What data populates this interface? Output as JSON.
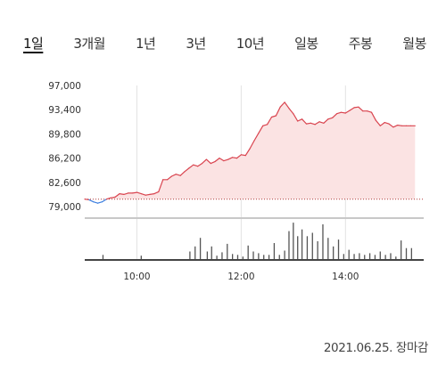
{
  "tabs": [
    {
      "label": "1일",
      "active": true
    },
    {
      "label": "3개월",
      "active": false
    },
    {
      "label": "1년",
      "active": false
    },
    {
      "label": "3년",
      "active": false
    },
    {
      "label": "10년",
      "active": false
    },
    {
      "label": "일봉",
      "active": false
    },
    {
      "label": "주봉",
      "active": false
    },
    {
      "label": "월봉",
      "active": false
    }
  ],
  "footer": {
    "date_label": "2021.06.25. 장마감"
  },
  "colors": {
    "up_line": "#d9444f",
    "up_fill": "#fbe3e3",
    "down_line": "#3d7fe0",
    "prev_close_dotted": "#b03a3a",
    "volume_bar": "#555555",
    "axis": "#444444",
    "grid": "#e3e3e3"
  },
  "chart_data": {
    "type": "area",
    "title": "",
    "xlabel": "",
    "ylabel": "",
    "y_ticks": [
      "97,000",
      "93,400",
      "89,800",
      "86,200",
      "82,600",
      "79,000"
    ],
    "y_tick_values": [
      97000,
      93400,
      89800,
      86200,
      82600,
      79000
    ],
    "ylim": [
      79000,
      97000
    ],
    "x_ticks": [
      "10:00",
      "12:00",
      "14:00"
    ],
    "x_tick_values": [
      600,
      720,
      840
    ],
    "xlim": [
      540,
      930
    ],
    "previous_close": 80100,
    "grid": "vertical",
    "series": [
      {
        "x": [
          540,
          545,
          550,
          555,
          560,
          565,
          570,
          575,
          580,
          585,
          590,
          595,
          600,
          605,
          610,
          615,
          620,
          625,
          630,
          635,
          640,
          645,
          650,
          655,
          660,
          665,
          670,
          675,
          680,
          685,
          690,
          695,
          700,
          705,
          710,
          715,
          720,
          725,
          730,
          735,
          740,
          745,
          750,
          755,
          760,
          765,
          770,
          775,
          780,
          785,
          790,
          795,
          800,
          805,
          810,
          815,
          820,
          825,
          830,
          835,
          840,
          845,
          850,
          855,
          860,
          865,
          870,
          875,
          880,
          885,
          890,
          895,
          900,
          905,
          910,
          915,
          920
        ],
        "values": [
          80100,
          80000,
          79700,
          79500,
          79700,
          80100,
          80300,
          80400,
          80900,
          80800,
          81000,
          81000,
          81100,
          80900,
          80700,
          80800,
          80900,
          81200,
          83000,
          83000,
          83500,
          83800,
          83600,
          84200,
          84700,
          85200,
          85000,
          85400,
          86000,
          85400,
          85700,
          86200,
          85800,
          86000,
          86300,
          86200,
          86700,
          86600,
          87600,
          88800,
          89900,
          91000,
          91200,
          92300,
          92500,
          93800,
          94500,
          93600,
          92800,
          91700,
          92000,
          91300,
          91400,
          91200,
          91600,
          91400,
          92000,
          92200,
          92800,
          93000,
          92900,
          93300,
          93700,
          93800,
          93200,
          93200,
          93000,
          91800,
          91000,
          91500,
          91300,
          90800,
          91100,
          91000,
          91000,
          91000,
          91000
        ]
      }
    ],
    "volume": {
      "x": [
        561,
        605,
        661,
        667,
        673,
        681,
        686,
        692,
        698,
        704,
        710,
        716,
        722,
        728,
        734,
        740,
        746,
        752,
        758,
        764,
        770,
        775,
        780,
        785,
        790,
        796,
        802,
        808,
        814,
        820,
        826,
        832,
        838,
        844,
        850,
        856,
        862,
        868,
        874,
        880,
        886,
        892,
        898,
        904,
        910,
        916
      ],
      "values": [
        6,
        5,
        10,
        16,
        26,
        10,
        16,
        5,
        9,
        19,
        7,
        6,
        4,
        17,
        10,
        8,
        6,
        6,
        20,
        6,
        11,
        34,
        44,
        28,
        36,
        28,
        32,
        22,
        42,
        26,
        16,
        24,
        7,
        12,
        7,
        8,
        6,
        8,
        6,
        10,
        6,
        8,
        4,
        23,
        14,
        14
      ]
    }
  }
}
